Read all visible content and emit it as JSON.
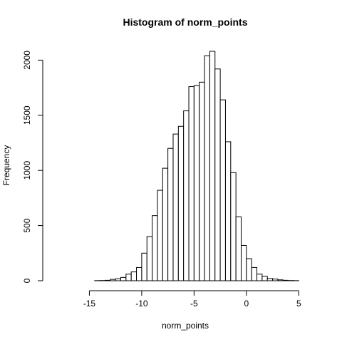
{
  "chart_data": {
    "type": "bar",
    "title": "Histogram of norm_points",
    "xlabel": "norm_points",
    "ylabel": "Frequency",
    "xlim": [
      -18.5,
      6
    ],
    "ylim": [
      0,
      2080
    ],
    "x_ticks": [
      -15,
      -10,
      -5,
      0,
      5
    ],
    "y_ticks": [
      0,
      500,
      1000,
      1500,
      2000
    ],
    "bin_width": 0.5,
    "bin_starts": [
      -18.5,
      -18,
      -17.5,
      -17,
      -16.5,
      -16,
      -15.5,
      -15,
      -14.5,
      -14,
      -13.5,
      -13,
      -12.5,
      -12,
      -11.5,
      -11,
      -10.5,
      -10,
      -9.5,
      -9,
      -8.5,
      -8,
      -7.5,
      -7,
      -6.5,
      -6,
      -5.5,
      -5,
      -4.5,
      -4,
      -3.5,
      -3,
      -2.5,
      -2,
      -1.5,
      -1,
      -0.5,
      0,
      0.5,
      1,
      1.5,
      2,
      2.5,
      3,
      3.5,
      4,
      4.5,
      5,
      5.5
    ],
    "values": [
      0,
      0,
      0,
      0,
      0,
      0,
      0,
      0,
      1,
      2,
      4,
      12,
      18,
      30,
      60,
      80,
      120,
      250,
      400,
      590,
      820,
      1020,
      1200,
      1330,
      1400,
      1540,
      1760,
      1770,
      1800,
      2040,
      2080,
      1920,
      1640,
      1260,
      980,
      580,
      320,
      200,
      120,
      60,
      40,
      20,
      15,
      8,
      4,
      2,
      1,
      0,
      0
    ]
  }
}
